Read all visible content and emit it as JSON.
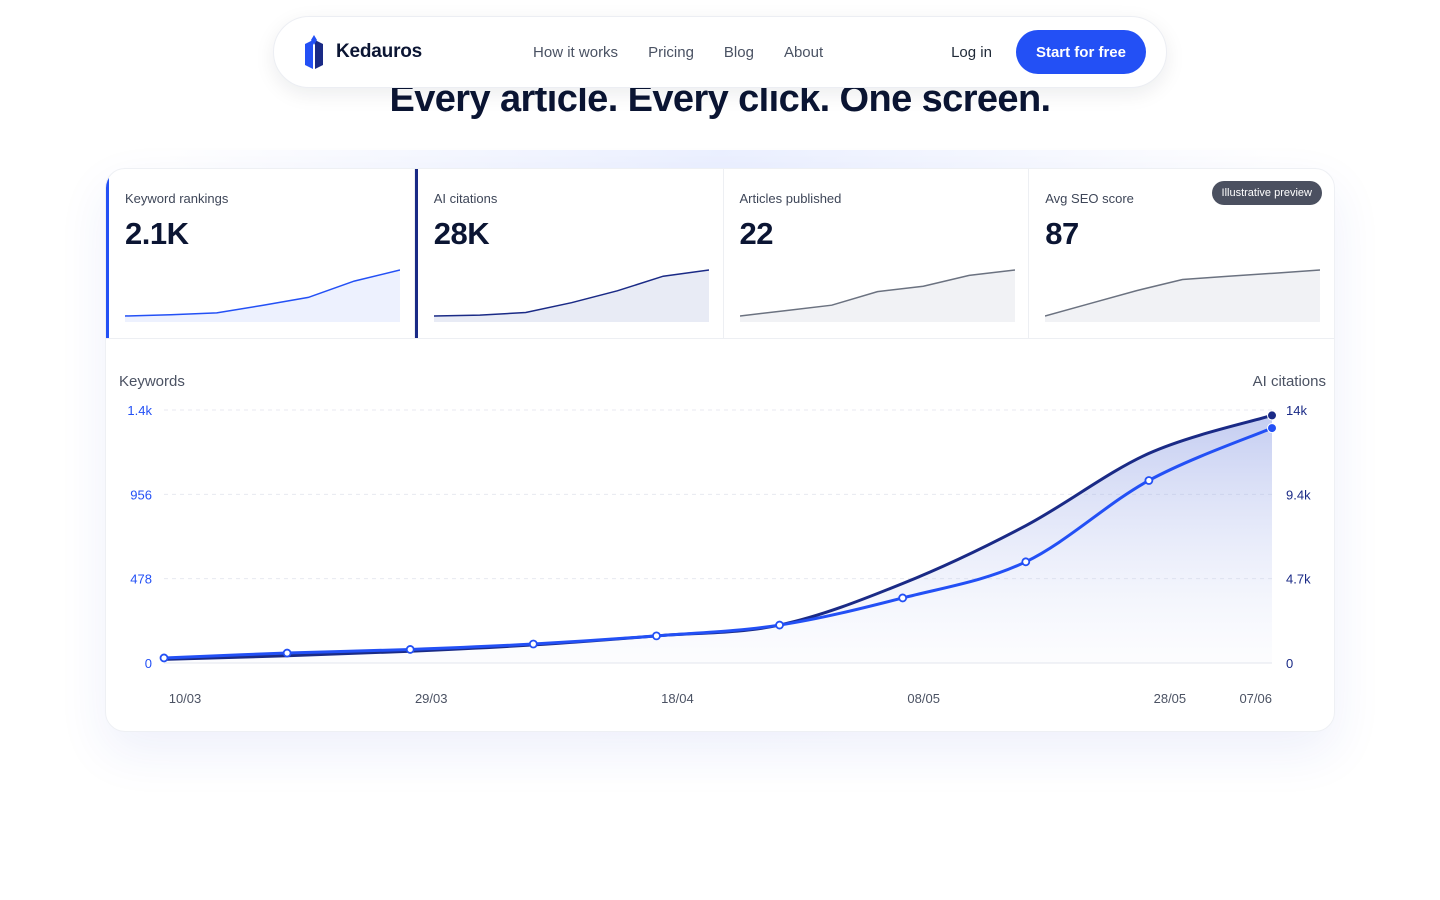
{
  "brand": {
    "name": "Kedauros"
  },
  "nav": {
    "links": [
      "How it works",
      "Pricing",
      "Blog",
      "About"
    ],
    "login": "Log in",
    "cta": "Start for free"
  },
  "hero": {
    "headline": "Every article. Every click. One screen."
  },
  "colors": {
    "accent": "#2350f5",
    "navy": "#1a2a86",
    "gray": "#6b7280"
  },
  "kpis": [
    {
      "label": "Keyword rankings",
      "value": "2.1K",
      "spark": [
        6,
        9,
        13,
        30,
        48,
        85,
        110
      ]
    },
    {
      "label": "AI citations",
      "value": "28K",
      "spark": [
        8,
        10,
        16,
        38,
        65,
        98,
        112
      ]
    },
    {
      "label": "Articles published",
      "value": "22",
      "spark": [
        4,
        6,
        8,
        13,
        15,
        19,
        21
      ]
    },
    {
      "label": "Avg SEO score",
      "value": "87",
      "spark": [
        60,
        68,
        76,
        83,
        85,
        87,
        89
      ]
    }
  ],
  "badge": "Illustrative preview",
  "chart_data": {
    "type": "line",
    "x": [
      "10/03",
      "20/03",
      "29/03",
      "08/04",
      "18/04",
      "28/04",
      "08/05",
      "18/05",
      "28/05",
      "07/06"
    ],
    "x_tick_labels": [
      "10/03",
      "29/03",
      "18/04",
      "08/05",
      "28/05",
      "07/06"
    ],
    "series": [
      {
        "name": "Keywords",
        "axis": "left",
        "values": [
          28,
          55,
          75,
          105,
          150,
          210,
          360,
          560,
          1010,
          1300
        ]
      },
      {
        "name": "AI citations",
        "axis": "right",
        "values": [
          200,
          400,
          650,
          1000,
          1500,
          2100,
          4400,
          7600,
          11600,
          13700
        ]
      }
    ],
    "left_axis": {
      "title": "Keywords",
      "ticks": [
        "0",
        "478",
        "956",
        "1.4k"
      ],
      "ylim": [
        0,
        1400
      ]
    },
    "right_axis": {
      "title": "AI citations",
      "ticks": [
        "0",
        "4.7k",
        "9.4k",
        "14k"
      ],
      "ylim": [
        0,
        14000
      ]
    },
    "grid": true
  }
}
